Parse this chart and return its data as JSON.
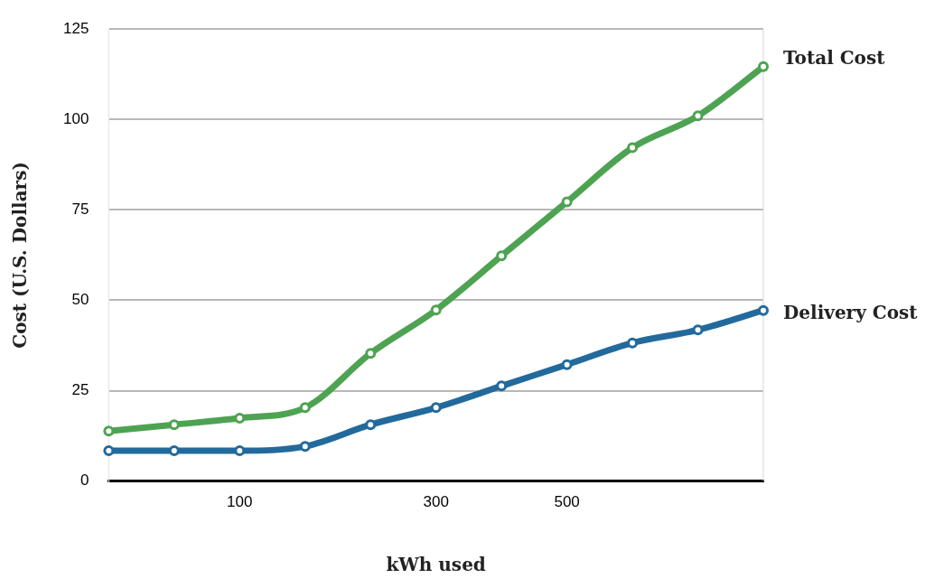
{
  "chart_data": {
    "type": "line",
    "xlabel": "kWh used",
    "ylabel": "Cost (U.S. Dollars)",
    "categories": [
      null,
      null,
      "100",
      null,
      null,
      "300",
      null,
      "500",
      null,
      null,
      null
    ],
    "series": [
      {
        "name": "Total Cost",
        "color": "#4ea352",
        "values": [
          13.8,
          15.6,
          17.4,
          20.3,
          35.3,
          47.3,
          62.3,
          77.2,
          92.2,
          101.0,
          114.6
        ]
      },
      {
        "name": "Delivery Cost",
        "color": "#236a9c",
        "values": [
          8.4,
          8.4,
          8.4,
          9.6,
          15.6,
          20.3,
          26.3,
          32.2,
          38.2,
          41.8,
          47.2
        ]
      }
    ],
    "ylim": [
      0,
      125
    ],
    "yticks": [
      0,
      25,
      50,
      75,
      100,
      125
    ],
    "grid": "y",
    "legend": false,
    "marker": "circle",
    "line_style": "solid"
  }
}
